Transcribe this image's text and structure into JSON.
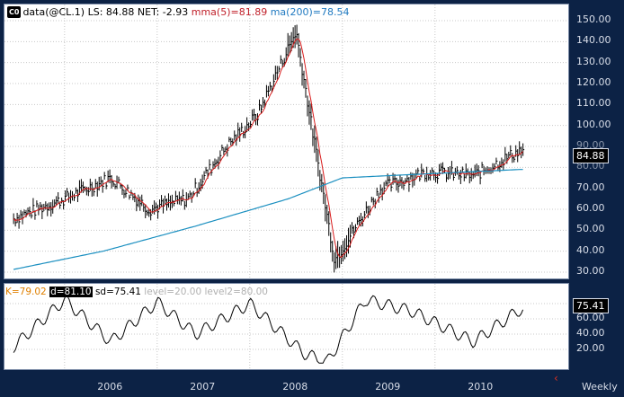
{
  "legend": {
    "badge": "C0",
    "symbol_text": "data(@CL.1) LS: 84.88  NET: -2.93 ",
    "mma_text": "mma(5)=81.89",
    "ma_text": " ma(200)=78.54"
  },
  "oscillator_legend": {
    "k_text": "K=79.02 ",
    "d_text": "d=81.10",
    "sd_text": " sd=75.41 ",
    "level_text": "level=20.00 level2=80.00"
  },
  "y_axis_price": [
    "150.00",
    "140.00",
    "130.00",
    "120.00",
    "110.00",
    "100.00",
    "90.00",
    "80.00",
    "70.00",
    "60.00",
    "50.00",
    "40.00",
    "30.00"
  ],
  "y_axis_osc": [
    "80.00",
    "60.00",
    "40.00",
    "20.00"
  ],
  "last_price_box": "84.88",
  "last_osc_box": "75.41",
  "x_axis": [
    "2006",
    "2007",
    "2008",
    "2009",
    "2010"
  ],
  "period": "Weekly",
  "colors": {
    "background": "#0c2245",
    "price_bars": "#000000",
    "mma": "#d81b1b",
    "ma200": "#1a8fc0",
    "oscillator": "#000000",
    "legend_mma": "#c0202a",
    "legend_ma": "#1f79c0",
    "level_text": "#b0b0b0",
    "k_text": "#e08000"
  },
  "chart_data": {
    "type": "line",
    "series": [
      {
        "name": "data(@CL.1)",
        "x": [
          "2005-06",
          "2006-01",
          "2006-07",
          "2006-12",
          "2007-05",
          "2007-10",
          "2008-02",
          "2008-07",
          "2008-09",
          "2008-12",
          "2009-06",
          "2009-12",
          "2010-06",
          "2010-12"
        ],
        "values": [
          55,
          65,
          75,
          60,
          65,
          90,
          105,
          145,
          100,
          36,
          70,
          78,
          76,
          88
        ]
      },
      {
        "name": "ma(200)",
        "x": [
          "2005-06",
          "2006-06",
          "2007-06",
          "2008-06",
          "2009-01",
          "2010-12"
        ],
        "values": [
          31,
          40,
          52,
          65,
          75,
          79
        ]
      },
      {
        "name": "sd",
        "x": [
          "2005-06",
          "2006-01",
          "2006-07",
          "2007-01",
          "2007-06",
          "2008-01",
          "2008-08",
          "2008-11",
          "2009-04",
          "2009-10",
          "2010-06",
          "2010-12"
        ],
        "values": [
          20,
          85,
          30,
          82,
          40,
          80,
          15,
          3,
          85,
          70,
          30,
          72
        ]
      }
    ],
    "ylim": [
      25,
      155
    ],
    "grid": true
  }
}
